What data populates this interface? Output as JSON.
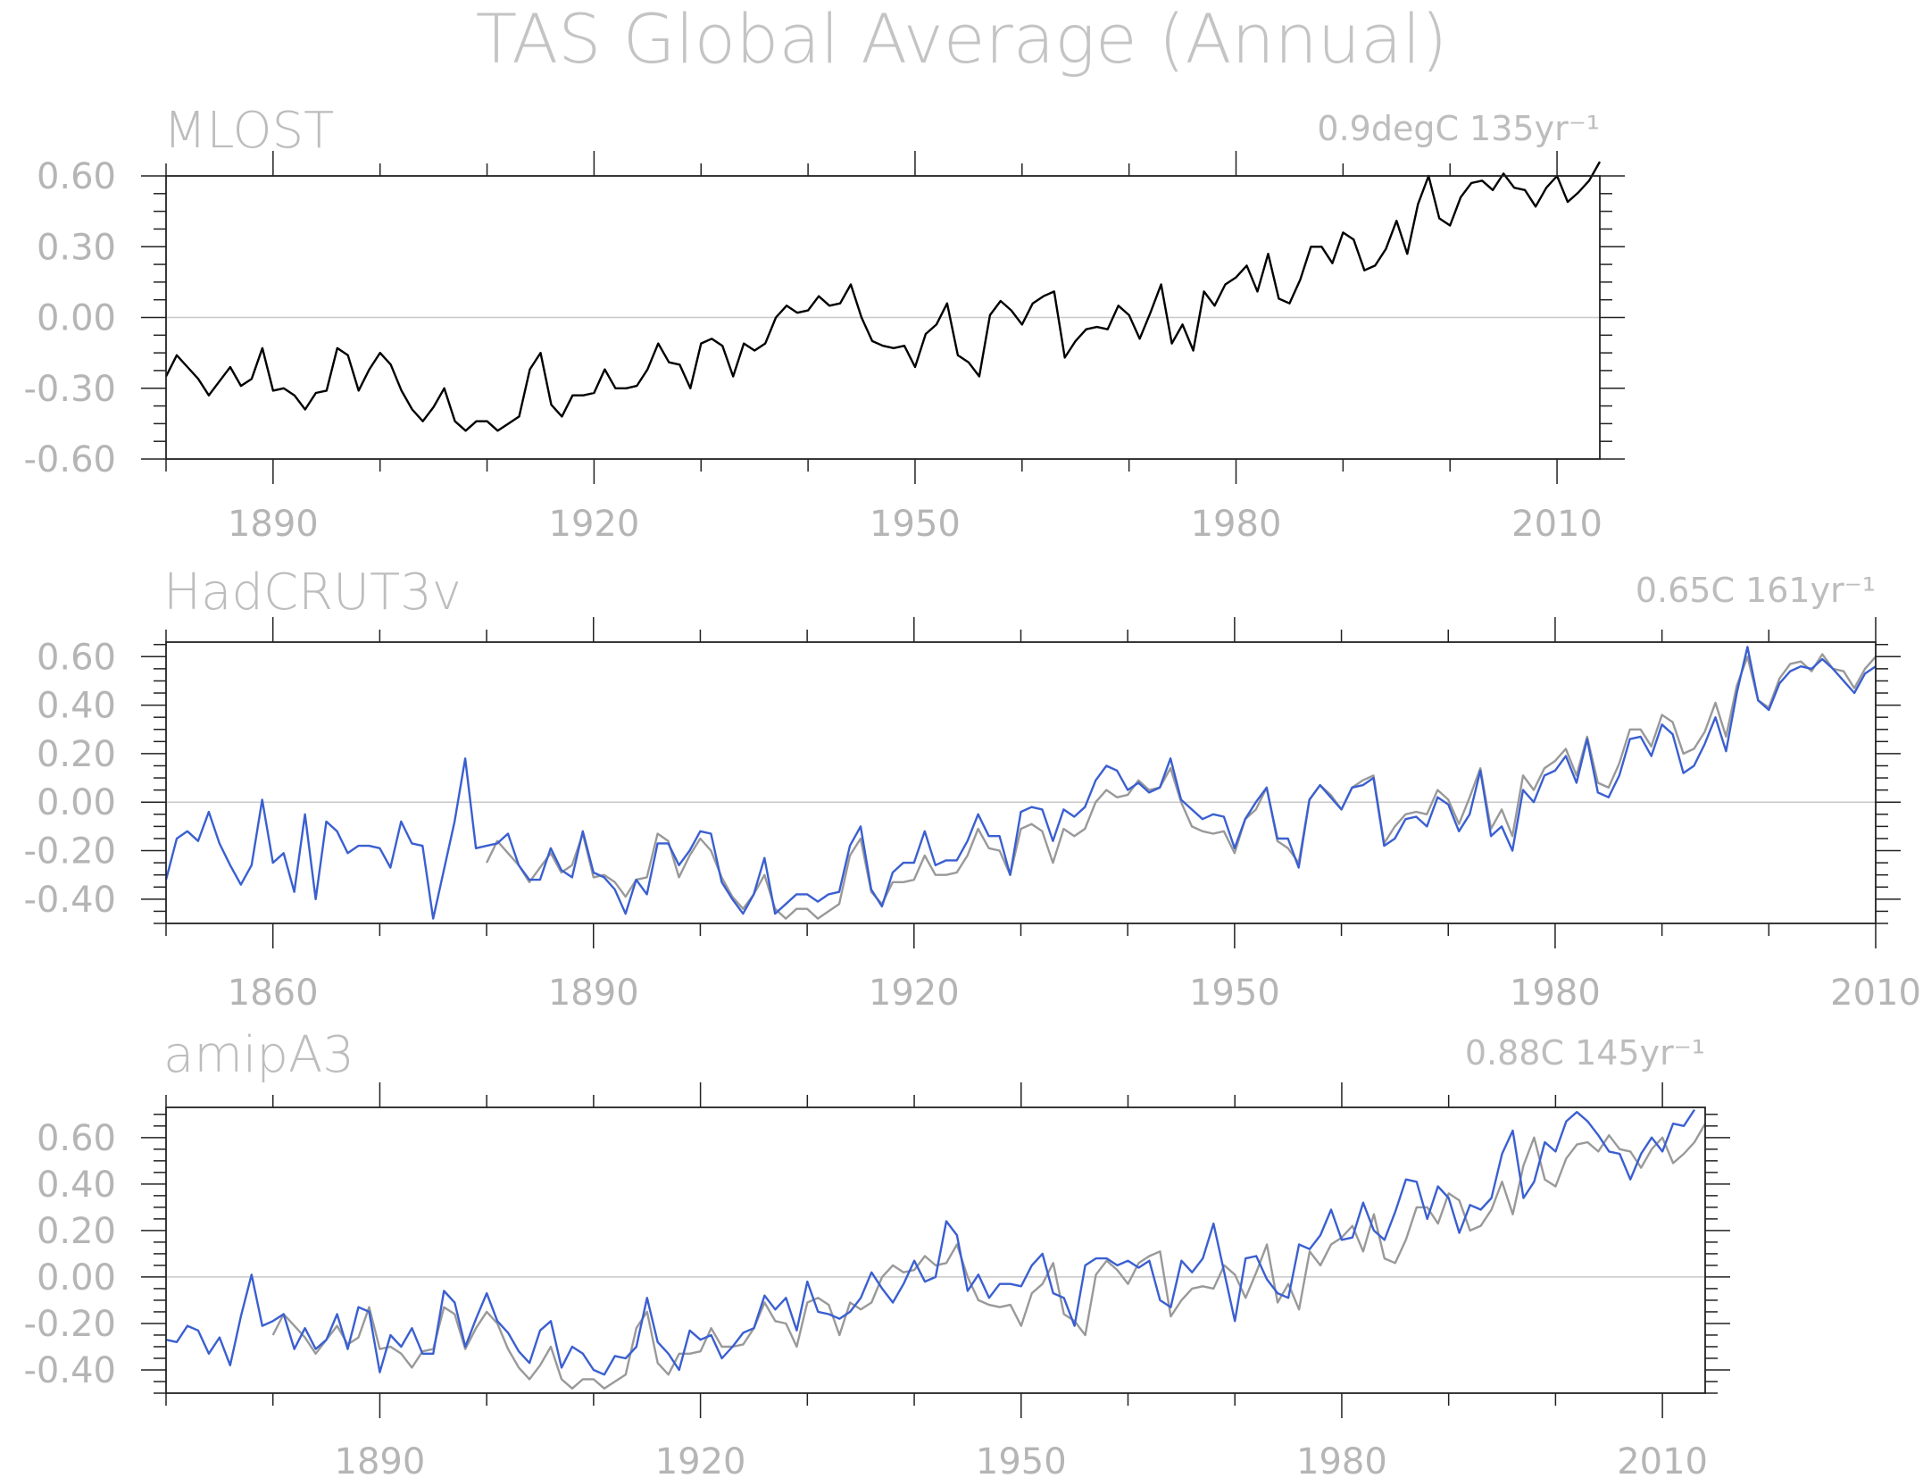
{
  "title": "TAS Global Average (Annual)",
  "chart_data": [
    {
      "type": "line",
      "name": "MLOST",
      "trend_label": "0.9degC 135yr⁻¹",
      "xlim": [
        1880,
        2014
      ],
      "ylim": [
        -0.6,
        0.6
      ],
      "xticks": [
        1890,
        1920,
        1950,
        1980,
        2010
      ],
      "yticks": [
        -0.6,
        -0.3,
        0.0,
        0.3,
        0.6
      ],
      "ytick_labels": [
        "-0.60",
        "-0.30",
        "0.00",
        "0.30",
        "0.60"
      ],
      "zero_line": true,
      "series": [
        {
          "color": "#000000",
          "x_start": 1880,
          "values": [
            -0.25,
            -0.16,
            -0.21,
            -0.26,
            -0.33,
            -0.27,
            -0.21,
            -0.29,
            -0.26,
            -0.13,
            -0.31,
            -0.3,
            -0.33,
            -0.39,
            -0.32,
            -0.31,
            -0.13,
            -0.16,
            -0.31,
            -0.22,
            -0.15,
            -0.2,
            -0.31,
            -0.39,
            -0.44,
            -0.38,
            -0.3,
            -0.44,
            -0.48,
            -0.44,
            -0.44,
            -0.48,
            -0.45,
            -0.42,
            -0.22,
            -0.15,
            -0.37,
            -0.42,
            -0.33,
            -0.33,
            -0.32,
            -0.22,
            -0.3,
            -0.3,
            -0.29,
            -0.22,
            -0.11,
            -0.19,
            -0.2,
            -0.3,
            -0.11,
            -0.09,
            -0.12,
            -0.25,
            -0.11,
            -0.14,
            -0.11,
            0.0,
            0.05,
            0.02,
            0.03,
            0.09,
            0.05,
            0.06,
            0.14,
            0.0,
            -0.1,
            -0.12,
            -0.13,
            -0.12,
            -0.21,
            -0.07,
            -0.03,
            0.06,
            -0.16,
            -0.19,
            -0.25,
            0.01,
            0.07,
            0.03,
            -0.03,
            0.06,
            0.09,
            0.11,
            -0.17,
            -0.1,
            -0.05,
            -0.04,
            -0.05,
            0.05,
            0.01,
            -0.09,
            0.02,
            0.14,
            -0.11,
            -0.03,
            -0.14,
            0.11,
            0.05,
            0.14,
            0.17,
            0.22,
            0.11,
            0.27,
            0.08,
            0.06,
            0.16,
            0.3,
            0.3,
            0.23,
            0.36,
            0.33,
            0.2,
            0.22,
            0.29,
            0.41,
            0.27,
            0.48,
            0.6,
            0.42,
            0.39,
            0.51,
            0.57,
            0.58,
            0.54,
            0.61,
            0.55,
            0.54,
            0.47,
            0.55,
            0.6,
            0.49,
            0.53,
            0.58,
            0.66
          ]
        }
      ]
    },
    {
      "type": "line",
      "name": "HadCRUT3v",
      "trend_label": "0.65C 161yr⁻¹",
      "xlim": [
        1850,
        2010
      ],
      "ylim": [
        -0.5,
        0.66
      ],
      "xticks": [
        1860,
        1890,
        1920,
        1950,
        1980,
        2010
      ],
      "yticks": [
        -0.4,
        -0.2,
        0.0,
        0.2,
        0.4,
        0.6
      ],
      "ytick_labels": [
        "-0.40",
        "-0.20",
        "0.00",
        "0.20",
        "0.40",
        "0.60"
      ],
      "zero_line": true,
      "series": [
        {
          "color": "#999999",
          "x_start": 1880,
          "values": [
            -0.25,
            -0.16,
            -0.21,
            -0.26,
            -0.33,
            -0.27,
            -0.21,
            -0.29,
            -0.26,
            -0.13,
            -0.31,
            -0.3,
            -0.33,
            -0.39,
            -0.32,
            -0.31,
            -0.13,
            -0.16,
            -0.31,
            -0.22,
            -0.15,
            -0.2,
            -0.31,
            -0.39,
            -0.44,
            -0.38,
            -0.3,
            -0.44,
            -0.48,
            -0.44,
            -0.44,
            -0.48,
            -0.45,
            -0.42,
            -0.22,
            -0.15,
            -0.37,
            -0.42,
            -0.33,
            -0.33,
            -0.32,
            -0.22,
            -0.3,
            -0.3,
            -0.29,
            -0.22,
            -0.11,
            -0.19,
            -0.2,
            -0.3,
            -0.11,
            -0.09,
            -0.12,
            -0.25,
            -0.11,
            -0.14,
            -0.11,
            0.0,
            0.05,
            0.02,
            0.03,
            0.09,
            0.05,
            0.06,
            0.14,
            0.0,
            -0.1,
            -0.12,
            -0.13,
            -0.12,
            -0.21,
            -0.07,
            -0.03,
            0.06,
            -0.16,
            -0.19,
            -0.25,
            0.01,
            0.07,
            0.03,
            -0.03,
            0.06,
            0.09,
            0.11,
            -0.17,
            -0.1,
            -0.05,
            -0.04,
            -0.05,
            0.05,
            0.01,
            -0.09,
            0.02,
            0.14,
            -0.11,
            -0.03,
            -0.14,
            0.11,
            0.05,
            0.14,
            0.17,
            0.22,
            0.11,
            0.27,
            0.08,
            0.06,
            0.16,
            0.3,
            0.3,
            0.23,
            0.36,
            0.33,
            0.2,
            0.22,
            0.29,
            0.41,
            0.27,
            0.48,
            0.6,
            0.42,
            0.39,
            0.51,
            0.57,
            0.58,
            0.54,
            0.61,
            0.55,
            0.54,
            0.47,
            0.55,
            0.6
          ]
        },
        {
          "color": "#3a5fd0",
          "x_start": 1850,
          "values": [
            -0.32,
            -0.15,
            -0.12,
            -0.16,
            -0.04,
            -0.17,
            -0.26,
            -0.34,
            -0.26,
            0.01,
            -0.25,
            -0.21,
            -0.37,
            -0.05,
            -0.4,
            -0.08,
            -0.12,
            -0.21,
            -0.18,
            -0.18,
            -0.19,
            -0.27,
            -0.08,
            -0.17,
            -0.18,
            -0.48,
            -0.28,
            -0.08,
            0.18,
            -0.19,
            -0.18,
            -0.17,
            -0.13,
            -0.26,
            -0.32,
            -0.32,
            -0.19,
            -0.28,
            -0.31,
            -0.12,
            -0.29,
            -0.31,
            -0.36,
            -0.46,
            -0.32,
            -0.38,
            -0.17,
            -0.17,
            -0.26,
            -0.2,
            -0.12,
            -0.13,
            -0.33,
            -0.4,
            -0.46,
            -0.38,
            -0.23,
            -0.46,
            -0.42,
            -0.38,
            -0.38,
            -0.41,
            -0.38,
            -0.37,
            -0.18,
            -0.1,
            -0.36,
            -0.43,
            -0.29,
            -0.25,
            -0.25,
            -0.12,
            -0.26,
            -0.24,
            -0.24,
            -0.16,
            -0.05,
            -0.14,
            -0.14,
            -0.3,
            -0.04,
            -0.02,
            -0.03,
            -0.16,
            -0.03,
            -0.06,
            -0.02,
            0.09,
            0.15,
            0.13,
            0.05,
            0.08,
            0.04,
            0.06,
            0.18,
            0.01,
            -0.03,
            -0.07,
            -0.05,
            -0.06,
            -0.19,
            -0.07,
            0.0,
            0.06,
            -0.15,
            -0.15,
            -0.27,
            0.01,
            0.07,
            0.02,
            -0.03,
            0.06,
            0.07,
            0.1,
            -0.18,
            -0.15,
            -0.07,
            -0.06,
            -0.1,
            0.02,
            -0.01,
            -0.12,
            -0.05,
            0.13,
            -0.14,
            -0.1,
            -0.2,
            0.05,
            0.0,
            0.11,
            0.13,
            0.19,
            0.08,
            0.26,
            0.04,
            0.02,
            0.11,
            0.26,
            0.27,
            0.19,
            0.32,
            0.28,
            0.12,
            0.15,
            0.24,
            0.35,
            0.21,
            0.45,
            0.64,
            0.42,
            0.38,
            0.49,
            0.54,
            0.56,
            0.55,
            0.59,
            0.55,
            0.5,
            0.45,
            0.53,
            0.56
          ]
        }
      ]
    },
    {
      "type": "line",
      "name": "amipA3",
      "trend_label": "0.88C 145yr⁻¹",
      "xlim": [
        1870,
        2014
      ],
      "ylim": [
        -0.5,
        0.73
      ],
      "xticks": [
        1890,
        1920,
        1950,
        1980,
        2010
      ],
      "yticks": [
        -0.4,
        -0.2,
        0.0,
        0.2,
        0.4,
        0.6
      ],
      "ytick_labels": [
        "-0.40",
        "-0.20",
        "0.00",
        "0.20",
        "0.40",
        "0.60"
      ],
      "zero_line": true,
      "series": [
        {
          "color": "#999999",
          "x_start": 1880,
          "values": [
            -0.25,
            -0.16,
            -0.21,
            -0.26,
            -0.33,
            -0.27,
            -0.21,
            -0.29,
            -0.26,
            -0.13,
            -0.31,
            -0.3,
            -0.33,
            -0.39,
            -0.32,
            -0.31,
            -0.13,
            -0.16,
            -0.31,
            -0.22,
            -0.15,
            -0.2,
            -0.31,
            -0.39,
            -0.44,
            -0.38,
            -0.3,
            -0.44,
            -0.48,
            -0.44,
            -0.44,
            -0.48,
            -0.45,
            -0.42,
            -0.22,
            -0.15,
            -0.37,
            -0.42,
            -0.33,
            -0.33,
            -0.32,
            -0.22,
            -0.3,
            -0.3,
            -0.29,
            -0.22,
            -0.11,
            -0.19,
            -0.2,
            -0.3,
            -0.11,
            -0.09,
            -0.12,
            -0.25,
            -0.11,
            -0.14,
            -0.11,
            0.0,
            0.05,
            0.02,
            0.03,
            0.09,
            0.05,
            0.06,
            0.14,
            0.0,
            -0.1,
            -0.12,
            -0.13,
            -0.12,
            -0.21,
            -0.07,
            -0.03,
            0.06,
            -0.16,
            -0.19,
            -0.25,
            0.01,
            0.07,
            0.03,
            -0.03,
            0.06,
            0.09,
            0.11,
            -0.17,
            -0.1,
            -0.05,
            -0.04,
            -0.05,
            0.05,
            0.01,
            -0.09,
            0.02,
            0.14,
            -0.11,
            -0.03,
            -0.14,
            0.11,
            0.05,
            0.14,
            0.17,
            0.22,
            0.11,
            0.27,
            0.08,
            0.06,
            0.16,
            0.3,
            0.3,
            0.23,
            0.36,
            0.33,
            0.2,
            0.22,
            0.29,
            0.41,
            0.27,
            0.48,
            0.6,
            0.42,
            0.39,
            0.51,
            0.57,
            0.58,
            0.54,
            0.61,
            0.55,
            0.54,
            0.47,
            0.55,
            0.6,
            0.49,
            0.53,
            0.58,
            0.66
          ]
        },
        {
          "color": "#3a5fd0",
          "x_start": 1870,
          "values": [
            -0.27,
            -0.28,
            -0.21,
            -0.23,
            -0.33,
            -0.26,
            -0.38,
            -0.17,
            0.01,
            -0.21,
            -0.19,
            -0.16,
            -0.31,
            -0.22,
            -0.31,
            -0.27,
            -0.16,
            -0.31,
            -0.13,
            -0.15,
            -0.41,
            -0.25,
            -0.3,
            -0.22,
            -0.33,
            -0.33,
            -0.06,
            -0.11,
            -0.3,
            -0.18,
            -0.07,
            -0.19,
            -0.24,
            -0.32,
            -0.37,
            -0.23,
            -0.19,
            -0.39,
            -0.3,
            -0.33,
            -0.4,
            -0.42,
            -0.34,
            -0.35,
            -0.3,
            -0.09,
            -0.28,
            -0.33,
            -0.4,
            -0.23,
            -0.27,
            -0.25,
            -0.35,
            -0.3,
            -0.24,
            -0.22,
            -0.08,
            -0.14,
            -0.09,
            -0.23,
            -0.02,
            -0.15,
            -0.16,
            -0.18,
            -0.15,
            -0.09,
            0.02,
            -0.05,
            -0.11,
            -0.03,
            0.07,
            -0.02,
            0.0,
            0.24,
            0.18,
            -0.06,
            0.01,
            -0.09,
            -0.03,
            -0.03,
            -0.04,
            0.05,
            0.1,
            -0.07,
            -0.09,
            -0.21,
            0.05,
            0.08,
            0.08,
            0.05,
            0.07,
            0.04,
            0.07,
            -0.1,
            -0.13,
            0.07,
            0.02,
            0.08,
            0.23,
            0.02,
            -0.19,
            0.08,
            0.09,
            -0.01,
            -0.07,
            -0.09,
            0.14,
            0.12,
            0.18,
            0.29,
            0.16,
            0.17,
            0.32,
            0.2,
            0.16,
            0.28,
            0.42,
            0.41,
            0.25,
            0.39,
            0.34,
            0.19,
            0.31,
            0.29,
            0.34,
            0.53,
            0.63,
            0.34,
            0.41,
            0.58,
            0.54,
            0.67,
            0.71,
            0.67,
            0.61,
            0.54,
            0.53,
            0.42,
            0.53,
            0.6,
            0.54,
            0.66,
            0.65,
            0.72
          ]
        }
      ]
    }
  ]
}
